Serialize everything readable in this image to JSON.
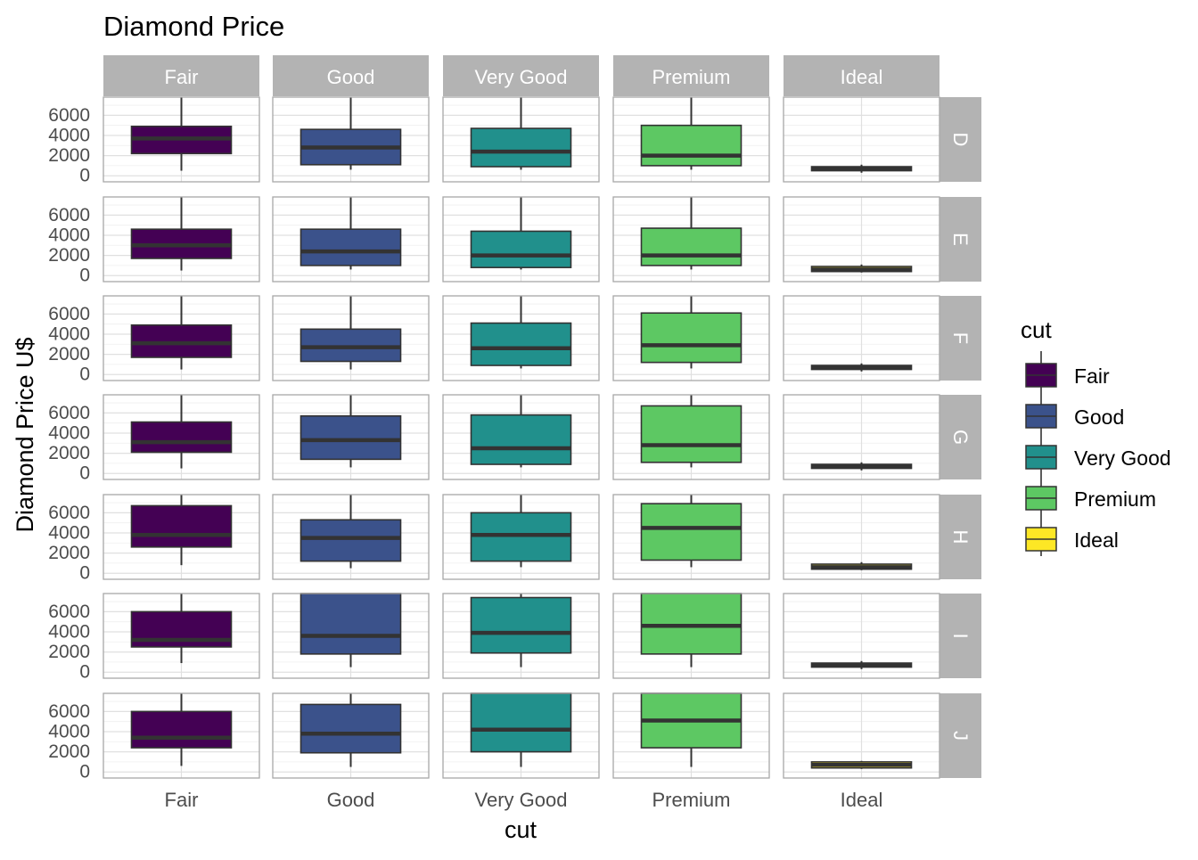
{
  "chart_data": {
    "type": "boxplot",
    "title": "Diamond Price",
    "xlabel": "cut",
    "ylabel": "Diamond Price U$",
    "ylim": [
      -600,
      7800
    ],
    "yticks": [
      0,
      2000,
      4000,
      6000
    ],
    "grid": true,
    "facet_columns": [
      "Fair",
      "Good",
      "Very Good",
      "Premium",
      "Ideal"
    ],
    "facet_rows": [
      "D",
      "E",
      "F",
      "G",
      "H",
      "I",
      "J"
    ],
    "colors": {
      "Fair": "#440154",
      "Good": "#3B528B",
      "Very Good": "#21908C",
      "Premium": "#5DC863",
      "Ideal": "#FDE725"
    },
    "legend": {
      "title": "cut",
      "position": "right",
      "entries": [
        "Fair",
        "Good",
        "Very Good",
        "Premium",
        "Ideal"
      ]
    },
    "boxes": [
      {
        "row": "D",
        "cut": "Fair",
        "lower": 500,
        "q1": 2200,
        "median": 3700,
        "q3": 4900,
        "upper": 7800
      },
      {
        "row": "D",
        "cut": "Good",
        "lower": 600,
        "q1": 1100,
        "median": 2800,
        "q3": 4600,
        "upper": 7800
      },
      {
        "row": "D",
        "cut": "Very Good",
        "lower": 600,
        "q1": 900,
        "median": 2400,
        "q3": 4700,
        "upper": 7800
      },
      {
        "row": "D",
        "cut": "Premium",
        "lower": 600,
        "q1": 1000,
        "median": 2000,
        "q3": 5000,
        "upper": 7800
      },
      {
        "row": "D",
        "cut": "Ideal",
        "lower": 300,
        "q1": 500,
        "median": 700,
        "q3": 900,
        "upper": 1100
      },
      {
        "row": "E",
        "cut": "Fair",
        "lower": 500,
        "q1": 1700,
        "median": 3000,
        "q3": 4600,
        "upper": 7800
      },
      {
        "row": "E",
        "cut": "Good",
        "lower": 600,
        "q1": 1000,
        "median": 2400,
        "q3": 4600,
        "upper": 7800
      },
      {
        "row": "E",
        "cut": "Very Good",
        "lower": 600,
        "q1": 800,
        "median": 2000,
        "q3": 4400,
        "upper": 7800
      },
      {
        "row": "E",
        "cut": "Premium",
        "lower": 600,
        "q1": 1000,
        "median": 2000,
        "q3": 4700,
        "upper": 7800
      },
      {
        "row": "E",
        "cut": "Ideal",
        "lower": 300,
        "q1": 400,
        "median": 600,
        "q3": 900,
        "upper": 1100
      },
      {
        "row": "F",
        "cut": "Fair",
        "lower": 500,
        "q1": 1700,
        "median": 3100,
        "q3": 4900,
        "upper": 7800
      },
      {
        "row": "F",
        "cut": "Good",
        "lower": 500,
        "q1": 1300,
        "median": 2700,
        "q3": 4500,
        "upper": 7800
      },
      {
        "row": "F",
        "cut": "Very Good",
        "lower": 600,
        "q1": 900,
        "median": 2600,
        "q3": 5100,
        "upper": 7800
      },
      {
        "row": "F",
        "cut": "Premium",
        "lower": 600,
        "q1": 1200,
        "median": 2900,
        "q3": 6100,
        "upper": 7800
      },
      {
        "row": "F",
        "cut": "Ideal",
        "lower": 300,
        "q1": 500,
        "median": 700,
        "q3": 900,
        "upper": 1100
      },
      {
        "row": "G",
        "cut": "Fair",
        "lower": 500,
        "q1": 2100,
        "median": 3100,
        "q3": 5100,
        "upper": 7800
      },
      {
        "row": "G",
        "cut": "Good",
        "lower": 600,
        "q1": 1400,
        "median": 3300,
        "q3": 5700,
        "upper": 7800
      },
      {
        "row": "G",
        "cut": "Very Good",
        "lower": 600,
        "q1": 900,
        "median": 2500,
        "q3": 5800,
        "upper": 7800
      },
      {
        "row": "G",
        "cut": "Premium",
        "lower": 600,
        "q1": 1100,
        "median": 2800,
        "q3": 6700,
        "upper": 7800
      },
      {
        "row": "G",
        "cut": "Ideal",
        "lower": 300,
        "q1": 500,
        "median": 700,
        "q3": 900,
        "upper": 1100
      },
      {
        "row": "H",
        "cut": "Fair",
        "lower": 800,
        "q1": 2600,
        "median": 3800,
        "q3": 6700,
        "upper": 7800
      },
      {
        "row": "H",
        "cut": "Good",
        "lower": 500,
        "q1": 1200,
        "median": 3500,
        "q3": 5300,
        "upper": 7800
      },
      {
        "row": "H",
        "cut": "Very Good",
        "lower": 600,
        "q1": 1200,
        "median": 3800,
        "q3": 6000,
        "upper": 7800
      },
      {
        "row": "H",
        "cut": "Premium",
        "lower": 600,
        "q1": 1300,
        "median": 4500,
        "q3": 6900,
        "upper": 7800
      },
      {
        "row": "H",
        "cut": "Ideal",
        "lower": 300,
        "q1": 400,
        "median": 600,
        "q3": 900,
        "upper": 1100
      },
      {
        "row": "I",
        "cut": "Fair",
        "lower": 900,
        "q1": 2500,
        "median": 3200,
        "q3": 6000,
        "upper": 7800
      },
      {
        "row": "I",
        "cut": "Good",
        "lower": 500,
        "q1": 1800,
        "median": 3600,
        "q3": 7800,
        "upper": 7800
      },
      {
        "row": "I",
        "cut": "Very Good",
        "lower": 500,
        "q1": 1900,
        "median": 3900,
        "q3": 7400,
        "upper": 7800
      },
      {
        "row": "I",
        "cut": "Premium",
        "lower": 500,
        "q1": 1800,
        "median": 4600,
        "q3": 7800,
        "upper": 7800
      },
      {
        "row": "I",
        "cut": "Ideal",
        "lower": 300,
        "q1": 500,
        "median": 700,
        "q3": 900,
        "upper": 1100
      },
      {
        "row": "J",
        "cut": "Fair",
        "lower": 600,
        "q1": 2400,
        "median": 3400,
        "q3": 6000,
        "upper": 7800
      },
      {
        "row": "J",
        "cut": "Good",
        "lower": 500,
        "q1": 1900,
        "median": 3800,
        "q3": 6700,
        "upper": 7800
      },
      {
        "row": "J",
        "cut": "Very Good",
        "lower": 500,
        "q1": 2000,
        "median": 4200,
        "q3": 7800,
        "upper": 7800
      },
      {
        "row": "J",
        "cut": "Premium",
        "lower": 500,
        "q1": 2400,
        "median": 5100,
        "q3": 7800,
        "upper": 7800
      },
      {
        "row": "J",
        "cut": "Ideal",
        "lower": 300,
        "q1": 400,
        "median": 700,
        "q3": 1000,
        "upper": 1100
      }
    ]
  }
}
